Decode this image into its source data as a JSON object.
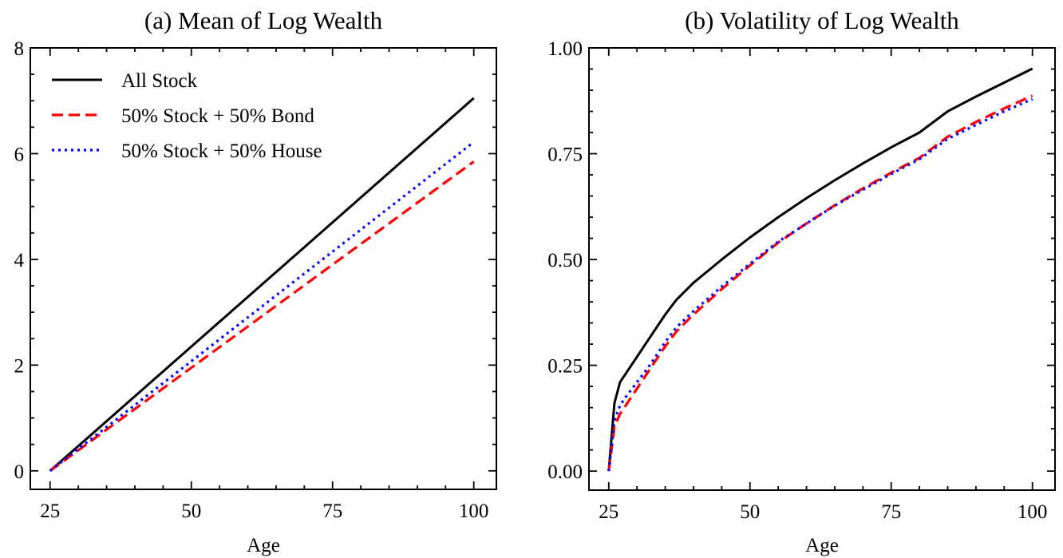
{
  "chart_data": [
    {
      "type": "line",
      "title": "(a) Mean of Log Wealth",
      "xlabel": "Age",
      "ylabel": "",
      "xlim": [
        21.5,
        104
      ],
      "ylim": [
        -0.35,
        8
      ],
      "xticks": [
        25,
        50,
        75,
        100
      ],
      "xtick_labels": [
        "25",
        "50",
        "75",
        "100"
      ],
      "xminor_step": 5,
      "yticks": [
        0,
        2,
        4,
        6,
        8
      ],
      "ytick_labels": [
        "0",
        "2",
        "4",
        "6",
        "8"
      ],
      "yminor_step": 0.5,
      "grid": false,
      "legend_position": "top-left",
      "x": [
        25,
        100
      ],
      "series": [
        {
          "name": "All Stock",
          "color": "#000000",
          "style": "solid",
          "values": [
            0,
            7.05
          ]
        },
        {
          "name": "50% Stock + 50% Bond",
          "color": "#ff0000",
          "style": "dashed",
          "values": [
            0,
            5.85
          ]
        },
        {
          "name": "50% Stock + 50% House",
          "color": "#0000ff",
          "style": "dotted",
          "values": [
            0,
            6.22
          ]
        }
      ]
    },
    {
      "type": "line",
      "title": "(b) Volatility of Log Wealth",
      "xlabel": "Age",
      "ylabel": "",
      "xlim": [
        21.5,
        104
      ],
      "ylim": [
        -0.045,
        1.0
      ],
      "xticks": [
        25,
        50,
        75,
        100
      ],
      "xtick_labels": [
        "25",
        "50",
        "75",
        "100"
      ],
      "xminor_step": 5,
      "yticks": [
        0,
        0.25,
        0.5,
        0.75,
        1.0
      ],
      "ytick_labels": [
        "0.00",
        "0.25",
        "0.50",
        "0.75",
        "1.00"
      ],
      "yminor_step": 0.05,
      "grid": false,
      "x": [
        25,
        26,
        27,
        28,
        30,
        32,
        33,
        35,
        37,
        40,
        45,
        50,
        55,
        60,
        65,
        70,
        75,
        80,
        85,
        90,
        95,
        100
      ],
      "series": [
        {
          "name": "All Stock",
          "color": "#000000",
          "style": "solid",
          "values": [
            0,
            0.16,
            0.21,
            0.23,
            0.27,
            0.31,
            0.33,
            0.37,
            0.405,
            0.445,
            0.5,
            0.552,
            0.6,
            0.645,
            0.687,
            0.727,
            0.765,
            0.8,
            0.85,
            0.885,
            0.918,
            0.951
          ]
        },
        {
          "name": "50% Stock + 50% Bond",
          "color": "#ff0000",
          "style": "dashed",
          "values": [
            0,
            0.105,
            0.135,
            0.155,
            0.195,
            0.235,
            0.255,
            0.295,
            0.33,
            0.37,
            0.43,
            0.486,
            0.54,
            0.585,
            0.628,
            0.668,
            0.705,
            0.74,
            0.79,
            0.825,
            0.857,
            0.887
          ]
        },
        {
          "name": "50% Stock + 50% House",
          "color": "#0000ff",
          "style": "dotted",
          "values": [
            0,
            0.12,
            0.155,
            0.175,
            0.21,
            0.245,
            0.265,
            0.305,
            0.34,
            0.378,
            0.436,
            0.49,
            0.542,
            0.585,
            0.627,
            0.665,
            0.702,
            0.737,
            0.785,
            0.818,
            0.85,
            0.879
          ]
        }
      ]
    }
  ]
}
